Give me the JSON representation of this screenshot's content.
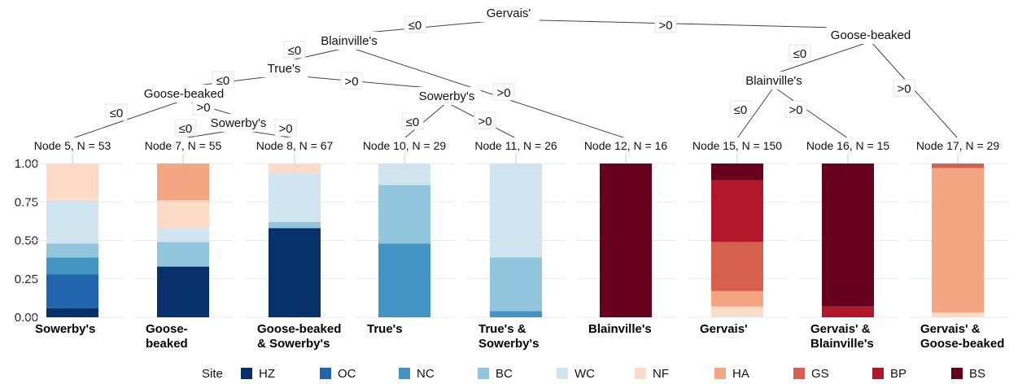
{
  "chart_data": {
    "type": "bar",
    "subtype": "stacked-proportion bars under a decision tree",
    "tree": {
      "splits": [
        {
          "id": 1,
          "label": "Gervais'"
        },
        {
          "id": 2,
          "label": "Blainville's"
        },
        {
          "id": 3,
          "label": "True's"
        },
        {
          "id": 4,
          "label": "Goose-beaked"
        },
        {
          "id": 6,
          "label": "Sowerby's"
        },
        {
          "id": 9,
          "label": "Sowerby's"
        },
        {
          "id": 13,
          "label": "Goose-beaked"
        },
        {
          "id": 14,
          "label": "Blainville's"
        }
      ],
      "edges": [
        {
          "from": 1,
          "to": 2,
          "label": "≤0"
        },
        {
          "from": 1,
          "to": 13,
          "label": ">0"
        },
        {
          "from": 2,
          "to": 3,
          "label": "≤0"
        },
        {
          "from": 2,
          "to": 12,
          "label": ">0"
        },
        {
          "from": 3,
          "to": 4,
          "label": "≤0"
        },
        {
          "from": 3,
          "to": 9,
          "label": ">0"
        },
        {
          "from": 4,
          "to": 5,
          "label": "≤0"
        },
        {
          "from": 4,
          "to": 6,
          "label": ">0"
        },
        {
          "from": 6,
          "to": 7,
          "label": "≤0"
        },
        {
          "from": 6,
          "to": 8,
          "label": ">0"
        },
        {
          "from": 9,
          "to": 10,
          "label": "≤0"
        },
        {
          "from": 9,
          "to": 11,
          "label": ">0"
        },
        {
          "from": 13,
          "to": 14,
          "label": "≤0"
        },
        {
          "from": 13,
          "to": 17,
          "label": ">0"
        },
        {
          "from": 14,
          "to": 15,
          "label": "≤0"
        },
        {
          "from": 14,
          "to": 16,
          "label": ">0"
        }
      ]
    },
    "ylim": [
      0,
      1
    ],
    "yticks": [
      "0.00",
      "0.25",
      "0.50",
      "0.75",
      "1.00"
    ],
    "legend": {
      "title": "Site",
      "position": "bottom",
      "items": [
        {
          "name": "HZ",
          "color": "#08306b"
        },
        {
          "name": "OC",
          "color": "#2166ac"
        },
        {
          "name": "NC",
          "color": "#4393c3"
        },
        {
          "name": "BC",
          "color": "#92c5de"
        },
        {
          "name": "WC",
          "color": "#d1e5f0"
        },
        {
          "name": "NF",
          "color": "#fddbc7"
        },
        {
          "name": "HA",
          "color": "#f4a582"
        },
        {
          "name": "GS",
          "color": "#d6604d"
        },
        {
          "name": "BP",
          "color": "#b2182b"
        },
        {
          "name": "BS",
          "color": "#67001f"
        }
      ]
    },
    "bars": [
      {
        "node_label": "Node 5, N = 53",
        "category": [
          "Sowerby's"
        ],
        "values": [
          0.06,
          0.22,
          0.11,
          0.09,
          0.28,
          0.24,
          0,
          0,
          0,
          0
        ]
      },
      {
        "node_label": "Node 7, N = 55",
        "category": [
          "Goose-",
          "beaked"
        ],
        "values": [
          0.33,
          0,
          0,
          0.16,
          0.09,
          0.18,
          0.24,
          0,
          0,
          0
        ]
      },
      {
        "node_label": "Node 8, N = 67",
        "category": [
          "Goose-beaked",
          "& Sowerby's"
        ],
        "values": [
          0.58,
          0,
          0,
          0.04,
          0.32,
          0.06,
          0,
          0,
          0,
          0
        ]
      },
      {
        "node_label": "Node 10, N = 29",
        "category": [
          "True's"
        ],
        "values": [
          0,
          0,
          0.48,
          0.38,
          0.14,
          0,
          0,
          0,
          0,
          0
        ]
      },
      {
        "node_label": "Node 11, N = 26",
        "category": [
          "True's &",
          "Sowerby's"
        ],
        "values": [
          0,
          0,
          0.04,
          0.35,
          0.61,
          0,
          0,
          0,
          0,
          0
        ]
      },
      {
        "node_label": "Node 12, N = 16",
        "category": [
          "Blainville's"
        ],
        "values": [
          0,
          0,
          0,
          0,
          0,
          0,
          0,
          0,
          0,
          1.0
        ]
      },
      {
        "node_label": "Node 15, N = 150",
        "category": [
          "Gervais'"
        ],
        "values": [
          0,
          0,
          0,
          0,
          0.01,
          0.06,
          0.1,
          0.32,
          0.4,
          0.11
        ]
      },
      {
        "node_label": "Node 16, N = 15",
        "category": [
          "Gervais' &",
          "Blainville's"
        ],
        "values": [
          0,
          0,
          0,
          0,
          0,
          0,
          0,
          0,
          0.07,
          0.93
        ]
      },
      {
        "node_label": "Node 17, N = 29",
        "category": [
          "Gervais' &",
          "Goose-beaked"
        ],
        "values": [
          0,
          0,
          0,
          0,
          0,
          0.03,
          0.94,
          0.03,
          0,
          0
        ]
      }
    ]
  }
}
